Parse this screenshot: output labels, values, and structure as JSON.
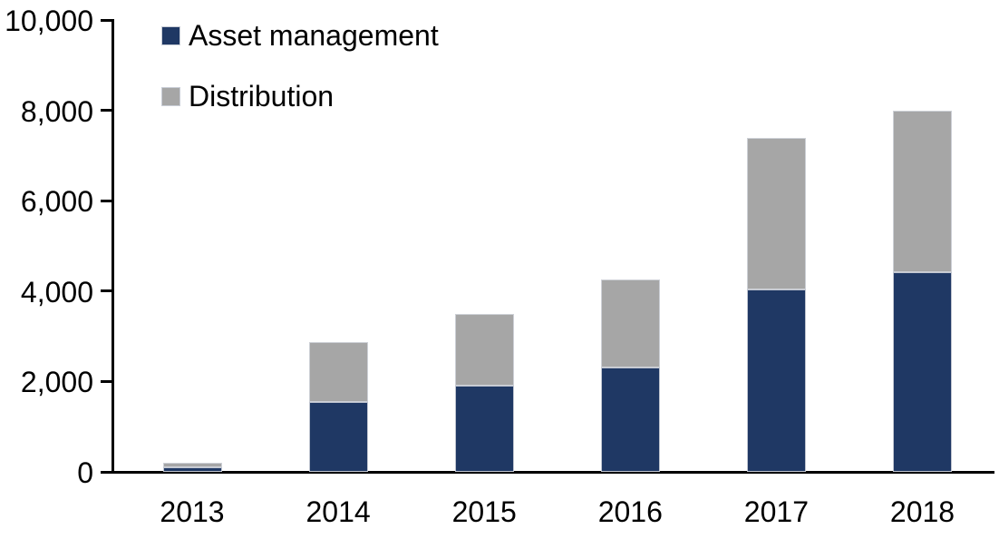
{
  "chart_data": {
    "type": "bar",
    "stacked": true,
    "title": "",
    "xlabel": "",
    "ylabel": "",
    "categories": [
      "2013",
      "2014",
      "2015",
      "2016",
      "2017",
      "2018"
    ],
    "series": [
      {
        "name": "Asset management",
        "color": "#1f3864",
        "values": [
          100,
          1550,
          1900,
          2310,
          4040,
          4420
        ]
      },
      {
        "name": "Distribution",
        "color": "#a6a6a6",
        "values": [
          100,
          1320,
          1600,
          1940,
          3360,
          3580
        ]
      }
    ],
    "ylim": [
      0,
      10000
    ],
    "ytick_interval": 2000,
    "ytick_labels_top_to_bottom": [
      "10,000",
      "8,000",
      "6,000",
      "4,000",
      "2,000",
      "0"
    ],
    "grid": false,
    "legend_position": "top-left-inside"
  },
  "colors": {
    "axis": "#000000",
    "text": "#000000",
    "background": "#ffffff",
    "bar_border": "#d2d5dc"
  }
}
